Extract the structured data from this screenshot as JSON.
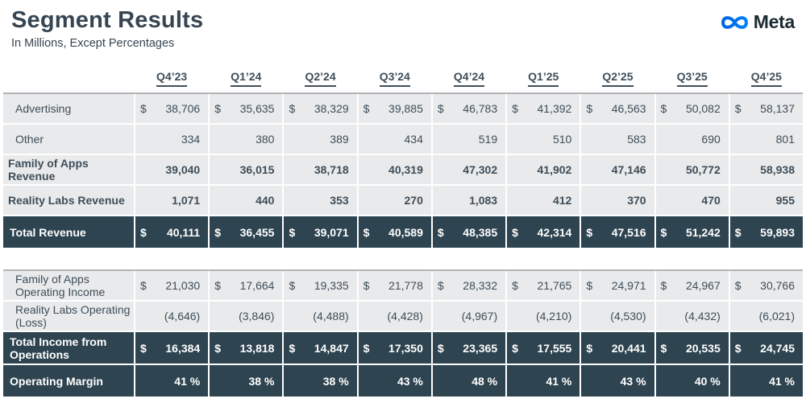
{
  "header": {
    "title": "Segment Results",
    "subtitle": "In Millions, Except Percentages",
    "brand": "Meta"
  },
  "colors": {
    "dark_row": "#2e4450",
    "light_row": "#e9eaeb",
    "text": "#3e4e5a",
    "title": "#364552",
    "section_border": "#b0b4b8",
    "brand_text": "#1c2b33",
    "logo_blue_start": "#0064e0",
    "logo_blue_end": "#0082fb"
  },
  "table": {
    "quarters": [
      "Q4’23",
      "Q1’24",
      "Q2’24",
      "Q3’24",
      "Q4’24",
      "Q1’25",
      "Q2’25",
      "Q3’25",
      "Q4’25"
    ],
    "sections": [
      {
        "rows": [
          {
            "label": "Advertising",
            "variant": "light",
            "bold": false,
            "dollar": true,
            "values": [
              "38,706",
              "35,635",
              "38,329",
              "39,885",
              "46,783",
              "41,392",
              "46,563",
              "50,082",
              "58,137"
            ]
          },
          {
            "label": "Other",
            "variant": "light",
            "bold": false,
            "dollar": false,
            "values": [
              "334",
              "380",
              "389",
              "434",
              "519",
              "510",
              "583",
              "690",
              "801"
            ]
          },
          {
            "label": "Family of Apps Revenue",
            "variant": "light",
            "bold": true,
            "dollar": false,
            "values": [
              "39,040",
              "36,015",
              "38,718",
              "40,319",
              "47,302",
              "41,902",
              "47,146",
              "50,772",
              "58,938"
            ]
          },
          {
            "label": "Reality Labs Revenue",
            "variant": "light",
            "bold": true,
            "dollar": false,
            "values": [
              "1,071",
              "440",
              "353",
              "270",
              "1,083",
              "412",
              "370",
              "470",
              "955"
            ]
          },
          {
            "label": "Total Revenue",
            "variant": "dark",
            "bold": true,
            "dollar": true,
            "values": [
              "40,111",
              "36,455",
              "39,071",
              "40,589",
              "48,385",
              "42,314",
              "47,516",
              "51,242",
              "59,893"
            ]
          }
        ]
      },
      {
        "rows": [
          {
            "label": "Family of Apps Operating Income",
            "variant": "light",
            "bold": false,
            "dollar": true,
            "values": [
              "21,030",
              "17,664",
              "19,335",
              "21,778",
              "28,332",
              "21,765",
              "24,971",
              "24,967",
              "30,766"
            ]
          },
          {
            "label": "Reality Labs Operating (Loss)",
            "variant": "light",
            "bold": false,
            "dollar": false,
            "values": [
              "(4,646)",
              "(3,846)",
              "(4,488)",
              "(4,428)",
              "(4,967)",
              "(4,210)",
              "(4,530)",
              "(4,432)",
              "(6,021)"
            ]
          },
          {
            "label": "Total Income from Operations",
            "variant": "dark",
            "bold": true,
            "dollar": true,
            "values": [
              "16,384",
              "13,818",
              "14,847",
              "17,350",
              "23,365",
              "17,555",
              "20,441",
              "20,535",
              "24,745"
            ]
          },
          {
            "label": "Operating Margin",
            "variant": "dark",
            "bold": true,
            "dollar": false,
            "values": [
              "41 %",
              "38 %",
              "38 %",
              "43 %",
              "48 %",
              "41 %",
              "43 %",
              "40 %",
              "41 %"
            ]
          }
        ]
      }
    ],
    "dollar_sign": "$"
  }
}
